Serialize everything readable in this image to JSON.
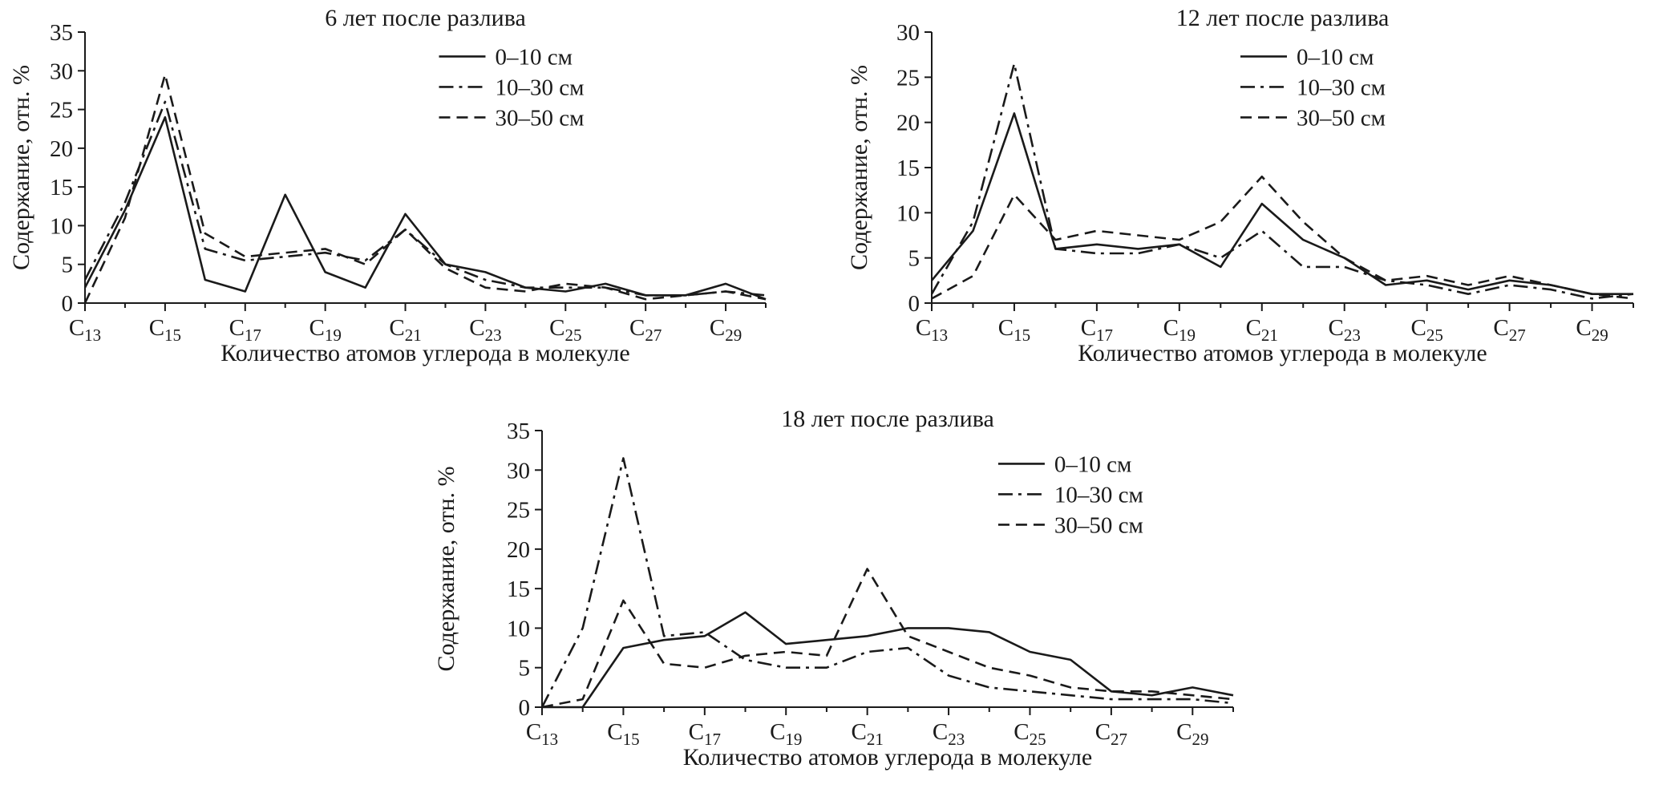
{
  "colors": {
    "ink": "#1a1a1a",
    "background": "#ffffff"
  },
  "chart_data": [
    {
      "type": "line",
      "title": "6 лет после разлива",
      "xlabel": "Количество атомов углерода в молекуле",
      "ylabel": "Содержание, отн. %",
      "x": [
        13,
        14,
        15,
        16,
        17,
        18,
        19,
        20,
        21,
        22,
        23,
        24,
        25,
        26,
        27,
        28,
        29,
        30
      ],
      "x_tick_positions": [
        13,
        15,
        17,
        19,
        21,
        23,
        25,
        27,
        29
      ],
      "x_tick_prefix": "C",
      "xlim": [
        13,
        30
      ],
      "ylim": [
        0,
        35
      ],
      "ytick_step": 5,
      "grid": false,
      "legend_position": "upper right",
      "series": [
        {
          "name": "0–10 см",
          "style": "solid",
          "values": [
            2,
            12,
            24,
            3,
            1.5,
            14,
            4,
            2,
            11.5,
            5,
            4,
            2,
            1.5,
            2.5,
            1,
            1,
            2.5,
            0.5
          ]
        },
        {
          "name": "10–30 см",
          "style": "dash-dot",
          "values": [
            3,
            13,
            26,
            7,
            5.5,
            6,
            6.5,
            5.5,
            9.5,
            5,
            3,
            2,
            2,
            2,
            1,
            1,
            1.5,
            1
          ]
        },
        {
          "name": "30–50 см",
          "style": "dashed",
          "values": [
            0,
            11,
            29.5,
            9,
            6,
            6.5,
            7,
            5,
            9.5,
            4.5,
            2,
            1.5,
            2.5,
            2,
            0.5,
            1,
            1.5,
            0.5
          ]
        }
      ]
    },
    {
      "type": "line",
      "title": "12 лет после разлива",
      "xlabel": "Количество атомов углерода в молекуле",
      "ylabel": "Содержание, отн. %",
      "x": [
        13,
        14,
        15,
        16,
        17,
        18,
        19,
        20,
        21,
        22,
        23,
        24,
        25,
        26,
        27,
        28,
        29,
        30
      ],
      "x_tick_positions": [
        13,
        15,
        17,
        19,
        21,
        23,
        25,
        27,
        29
      ],
      "x_tick_prefix": "C",
      "xlim": [
        13,
        30
      ],
      "ylim": [
        0,
        30
      ],
      "ytick_step": 5,
      "grid": false,
      "legend_position": "upper right",
      "series": [
        {
          "name": "0–10 см",
          "style": "solid",
          "values": [
            2.5,
            8,
            21,
            6,
            6.5,
            6,
            6.5,
            4,
            11,
            7,
            5,
            2,
            2.5,
            1.5,
            2.5,
            2,
            1,
            1
          ]
        },
        {
          "name": "10–30 см",
          "style": "dash-dot",
          "values": [
            1,
            9,
            26.5,
            6,
            5.5,
            5.5,
            6.5,
            5,
            8,
            4,
            4,
            2.5,
            2,
            1,
            2,
            1.5,
            0.5,
            1
          ]
        },
        {
          "name": "30–50 см",
          "style": "dashed",
          "values": [
            0.5,
            3,
            12,
            7,
            8,
            7.5,
            7,
            9,
            14,
            9,
            5,
            2.5,
            3,
            2,
            3,
            2,
            1,
            0.5
          ]
        }
      ]
    },
    {
      "type": "line",
      "title": "18 лет после разлива",
      "xlabel": "Количество атомов углерода в молекуле",
      "ylabel": "Содержание, отн. %",
      "x": [
        13,
        14,
        15,
        16,
        17,
        18,
        19,
        20,
        21,
        22,
        23,
        24,
        25,
        26,
        27,
        28,
        29,
        30
      ],
      "x_tick_positions": [
        13,
        15,
        17,
        19,
        21,
        23,
        25,
        27,
        29
      ],
      "x_tick_prefix": "C",
      "xlim": [
        13,
        30
      ],
      "ylim": [
        0,
        35
      ],
      "ytick_step": 5,
      "grid": false,
      "legend_position": "upper right",
      "series": [
        {
          "name": "0–10 см",
          "style": "solid",
          "values": [
            0,
            0,
            7.5,
            8.5,
            9,
            12,
            8,
            8.5,
            9,
            10,
            10,
            9.5,
            7,
            6,
            2,
            1.5,
            2.5,
            1.5
          ]
        },
        {
          "name": "10–30 см",
          "style": "dash-dot",
          "values": [
            0,
            10,
            31.5,
            9,
            9.5,
            6,
            5,
            5,
            7,
            7.5,
            4,
            2.5,
            2,
            1.5,
            1,
            1,
            1,
            0.5
          ]
        },
        {
          "name": "30–50 см",
          "style": "dashed",
          "values": [
            0,
            1,
            13.5,
            5.5,
            5,
            6.5,
            7,
            6.5,
            17.5,
            9,
            7,
            5,
            4,
            2.5,
            2,
            2,
            1.5,
            1
          ]
        }
      ]
    }
  ]
}
